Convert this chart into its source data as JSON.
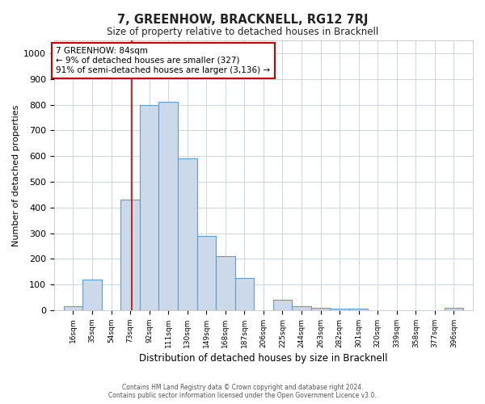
{
  "title": "7, GREENHOW, BRACKNELL, RG12 7RJ",
  "subtitle": "Size of property relative to detached houses in Bracknell",
  "xlabel": "Distribution of detached houses by size in Bracknell",
  "ylabel": "Number of detached properties",
  "bin_labels": [
    "16sqm",
    "35sqm",
    "54sqm",
    "73sqm",
    "92sqm",
    "111sqm",
    "130sqm",
    "149sqm",
    "168sqm",
    "187sqm",
    "206sqm",
    "225sqm",
    "244sqm",
    "263sqm",
    "282sqm",
    "301sqm",
    "320sqm",
    "339sqm",
    "358sqm",
    "377sqm",
    "396sqm"
  ],
  "bin_edges": [
    16,
    35,
    54,
    73,
    92,
    111,
    130,
    149,
    168,
    187,
    206,
    225,
    244,
    263,
    282,
    301,
    320,
    339,
    358,
    377,
    396
  ],
  "bar_heights": [
    15,
    120,
    0,
    430,
    800,
    810,
    590,
    290,
    210,
    125,
    0,
    40,
    15,
    10,
    5,
    5,
    0,
    0,
    0,
    0,
    10
  ],
  "bar_color": "#ccd9e8",
  "bar_edge_color": "#6699cc",
  "ylim": [
    0,
    1050
  ],
  "yticks": [
    0,
    100,
    200,
    300,
    400,
    500,
    600,
    700,
    800,
    900,
    1000
  ],
  "property_label": "7 GREENHOW: 84sqm",
  "annotation_line1": "← 9% of detached houses are smaller (327)",
  "annotation_line2": "91% of semi-detached houses are larger (3,136) →",
  "annotation_box_color": "#ffffff",
  "annotation_box_edge_color": "#cc0000",
  "vline_color": "#cc0000",
  "vline_x": 84,
  "footer1": "Contains HM Land Registry data © Crown copyright and database right 2024.",
  "footer2": "Contains public sector information licensed under the Open Government Licence v3.0.",
  "background_color": "#ffffff",
  "grid_color": "#ccd6e0"
}
